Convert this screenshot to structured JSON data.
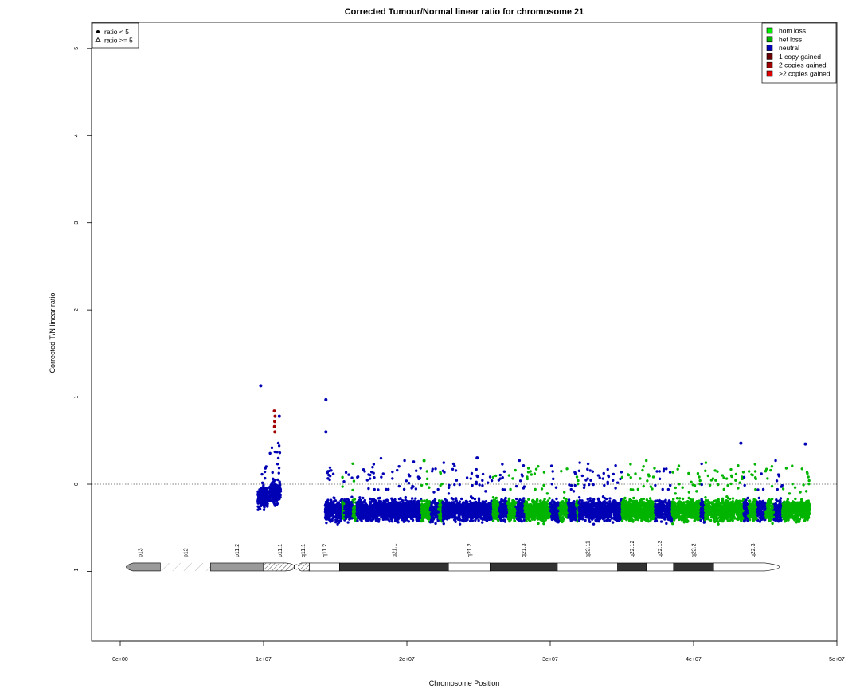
{
  "chart_data": {
    "type": "scatter",
    "title": "Corrected Tumour/Normal linear ratio for chromosome  21",
    "xlabel": "Chromosome Position",
    "ylabel": "Corrected T/N linear ratio",
    "xlim": [
      -2000000,
      50000000
    ],
    "ylim": [
      -1.8,
      5.3
    ],
    "x_ticks": [
      {
        "value": 0,
        "label": "0e+00"
      },
      {
        "value": 10000000,
        "label": "1e+07"
      },
      {
        "value": 20000000,
        "label": "2e+07"
      },
      {
        "value": 30000000,
        "label": "3e+07"
      },
      {
        "value": 40000000,
        "label": "4e+07"
      },
      {
        "value": 50000000,
        "label": "5e+07"
      }
    ],
    "y_ticks": [
      {
        "value": -1,
        "label": "−1"
      },
      {
        "value": 0,
        "label": "0"
      },
      {
        "value": 1,
        "label": "1"
      },
      {
        "value": 2,
        "label": "2"
      },
      {
        "value": 3,
        "label": "3"
      },
      {
        "value": 4,
        "label": "4"
      },
      {
        "value": 5,
        "label": "5"
      }
    ],
    "reference_line": {
      "y": 0,
      "style": "dotted"
    },
    "shape_legend": {
      "position": "top-left",
      "items": [
        {
          "symbol": "filled-circle",
          "label": "ratio < 5"
        },
        {
          "symbol": "open-triangle",
          "label": "ratio >= 5"
        }
      ]
    },
    "color_legend": {
      "position": "top-right",
      "items": [
        {
          "label": "hom loss",
          "color": "#00ee00"
        },
        {
          "label": "het loss",
          "color": "#00b400"
        },
        {
          "label": "neutral",
          "color": "#0000b4"
        },
        {
          "label": "1 copy gained",
          "color": "#6b0000"
        },
        {
          "label": "2 copies gained",
          "color": "#a00000"
        },
        {
          "label": ">2 copies gained",
          "color": "#e00000"
        }
      ]
    },
    "series": [
      {
        "name": "neutral",
        "color": "#0000b4"
      },
      {
        "name": "het loss",
        "color": "#00b400"
      },
      {
        "name": "2 copies gained",
        "color": "#a00000"
      }
    ],
    "segments": [
      {
        "start": 9600000,
        "end": 10300000,
        "state": "neutral",
        "center": -0.15,
        "spread": 0.18
      },
      {
        "start": 10400000,
        "end": 11200000,
        "state": "neutral",
        "center": -0.1,
        "spread": 0.2
      },
      {
        "start": 14300000,
        "end": 15500000,
        "state": "neutral",
        "center": -0.3,
        "spread": 0.17
      },
      {
        "start": 15500000,
        "end": 16500000,
        "state": "mixed",
        "center": -0.3,
        "spread": 0.17
      },
      {
        "start": 16500000,
        "end": 21000000,
        "state": "neutral",
        "center": -0.3,
        "spread": 0.17
      },
      {
        "start": 21000000,
        "end": 22500000,
        "state": "mixed",
        "center": -0.3,
        "spread": 0.17
      },
      {
        "start": 22500000,
        "end": 26000000,
        "state": "neutral",
        "center": -0.3,
        "spread": 0.17
      },
      {
        "start": 26000000,
        "end": 28500000,
        "state": "mixed",
        "center": -0.3,
        "spread": 0.17
      },
      {
        "start": 28500000,
        "end": 29500000,
        "state": "het loss",
        "center": -0.3,
        "spread": 0.17
      },
      {
        "start": 29500000,
        "end": 32000000,
        "state": "mixed",
        "center": -0.3,
        "spread": 0.17
      },
      {
        "start": 32000000,
        "end": 35000000,
        "state": "neutral",
        "center": -0.3,
        "spread": 0.17
      },
      {
        "start": 35000000,
        "end": 37300000,
        "state": "het loss",
        "center": -0.3,
        "spread": 0.17
      },
      {
        "start": 37300000,
        "end": 38500000,
        "state": "neutral",
        "center": -0.3,
        "spread": 0.17
      },
      {
        "start": 38500000,
        "end": 40500000,
        "state": "het loss",
        "center": -0.3,
        "spread": 0.17
      },
      {
        "start": 40500000,
        "end": 40800000,
        "state": "neutral",
        "center": -0.3,
        "spread": 0.17
      },
      {
        "start": 40800000,
        "end": 43500000,
        "state": "het loss",
        "center": -0.3,
        "spread": 0.17
      },
      {
        "start": 43500000,
        "end": 46500000,
        "state": "mixed",
        "center": -0.3,
        "spread": 0.17
      },
      {
        "start": 46500000,
        "end": 48100000,
        "state": "het loss",
        "center": -0.3,
        "spread": 0.17
      }
    ],
    "highlight_points": [
      {
        "x": 9800000,
        "y": 1.13,
        "state": "neutral"
      },
      {
        "x": 14350000,
        "y": 0.97,
        "state": "neutral"
      },
      {
        "x": 14350000,
        "y": 0.6,
        "state": "neutral"
      },
      {
        "x": 10750000,
        "y": 0.84,
        "state": "2 copies gained"
      },
      {
        "x": 10800000,
        "y": 0.78,
        "state": "2 copies gained"
      },
      {
        "x": 10780000,
        "y": 0.72,
        "state": "2 copies gained"
      },
      {
        "x": 10760000,
        "y": 0.66,
        "state": "2 copies gained"
      },
      {
        "x": 10790000,
        "y": 0.6,
        "state": "2 copies gained"
      },
      {
        "x": 11100000,
        "y": 0.78,
        "state": "neutral"
      },
      {
        "x": 43300000,
        "y": 0.47,
        "state": "neutral"
      },
      {
        "x": 47800000,
        "y": 0.46,
        "state": "neutral"
      },
      {
        "x": 24900000,
        "y": 0.3,
        "state": "neutral"
      },
      {
        "x": 21200000,
        "y": 0.27,
        "state": "het loss"
      }
    ],
    "ideogram": {
      "y": -0.95,
      "bands": [
        {
          "name": "p13",
          "start": 0,
          "end": 2800000,
          "fill": "#9a9a9a",
          "shape": "cap-left"
        },
        {
          "name": "p12",
          "start": 2800000,
          "end": 6300000,
          "fill": "stalk"
        },
        {
          "name": "p11.2",
          "start": 6300000,
          "end": 10000000,
          "fill": "#9a9a9a"
        },
        {
          "name": "p11.1",
          "start": 10000000,
          "end": 12300000,
          "fill": "hatch",
          "shape": "cen-left"
        },
        {
          "name": "q11.1",
          "start": 12300000,
          "end": 13200000,
          "fill": "hatch",
          "shape": "cen-right"
        },
        {
          "name": "q11.2",
          "start": 13200000,
          "end": 15300000,
          "fill": "#ffffff"
        },
        {
          "name": "q21.1",
          "start": 15300000,
          "end": 22900000,
          "fill": "#333333"
        },
        {
          "name": "q21.2",
          "start": 22900000,
          "end": 25800000,
          "fill": "#ffffff"
        },
        {
          "name": "q21.3",
          "start": 25800000,
          "end": 30500000,
          "fill": "#333333"
        },
        {
          "name": "q22.11",
          "start": 30500000,
          "end": 34700000,
          "fill": "#ffffff"
        },
        {
          "name": "q22.12",
          "start": 34700000,
          "end": 36700000,
          "fill": "#333333"
        },
        {
          "name": "q22.13",
          "start": 36700000,
          "end": 38600000,
          "fill": "#ffffff"
        },
        {
          "name": "q22.2",
          "start": 38600000,
          "end": 41400000,
          "fill": "#333333"
        },
        {
          "name": "q22.3",
          "start": 41400000,
          "end": 46900000,
          "fill": "#ffffff",
          "shape": "cap-right"
        }
      ]
    }
  }
}
